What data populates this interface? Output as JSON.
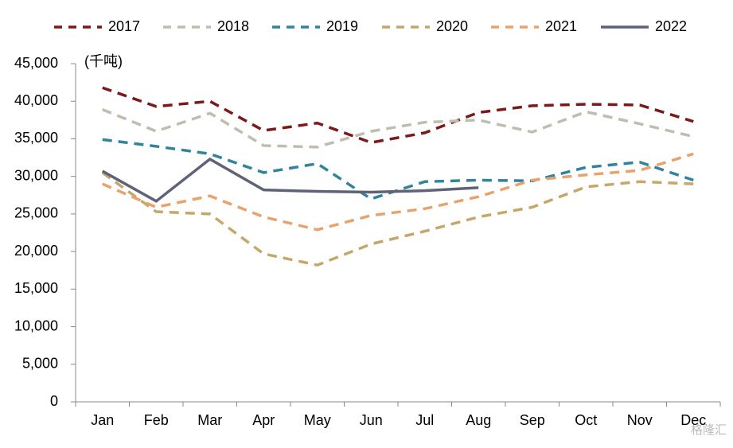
{
  "chart_data": {
    "type": "line",
    "annotation": "(千吨)",
    "watermark": "格隆汇",
    "categories": [
      "Jan",
      "Feb",
      "Mar",
      "Apr",
      "May",
      "Jun",
      "Jul",
      "Aug",
      "Sep",
      "Oct",
      "Nov",
      "Dec"
    ],
    "series": [
      {
        "name": "2017",
        "color": "#7b1a1a",
        "dashed": true,
        "values": [
          41800,
          39300,
          40000,
          36100,
          37100,
          34500,
          35800,
          38500,
          39400,
          39600,
          39500,
          37300
        ]
      },
      {
        "name": "2018",
        "color": "#c0bdb0",
        "dashed": true,
        "values": [
          38900,
          36000,
          38400,
          34100,
          33900,
          36000,
          37200,
          37500,
          35900,
          38600,
          37000,
          35300
        ]
      },
      {
        "name": "2019",
        "color": "#31849b",
        "dashed": true,
        "values": [
          34900,
          34000,
          33000,
          30500,
          31700,
          27000,
          29300,
          29500,
          29400,
          31200,
          31900,
          29500
        ]
      },
      {
        "name": "2020",
        "color": "#c4a86b",
        "dashed": true,
        "values": [
          30500,
          25300,
          25000,
          19700,
          18200,
          21000,
          22700,
          24600,
          25900,
          28600,
          29300,
          29000
        ]
      },
      {
        "name": "2021",
        "color": "#e8a26e",
        "dashed": true,
        "values": [
          29000,
          25900,
          27400,
          24600,
          22900,
          24800,
          25700,
          27300,
          29500,
          30200,
          30800,
          33000
        ]
      },
      {
        "name": "2022",
        "color": "#5f6377",
        "dashed": false,
        "values": [
          30700,
          26700,
          32300,
          28200,
          28000,
          27900,
          28100,
          28500,
          null,
          null,
          null,
          null
        ]
      }
    ],
    "ylim": [
      0,
      45000
    ],
    "yticks": [
      0,
      {
        "value": 5000,
        "label": "5,000"
      },
      {
        "value": 10000,
        "label": "10,000"
      },
      {
        "value": 15000,
        "label": "15,000"
      },
      {
        "value": 20000,
        "label": "20,000"
      },
      {
        "value": 25000,
        "label": "25,000"
      },
      {
        "value": 30000,
        "label": "30,000"
      },
      {
        "value": 35000,
        "label": "35,000"
      },
      {
        "value": 40000,
        "label": "40,000"
      },
      {
        "value": 45000,
        "label": "45,000"
      }
    ],
    "grid": false,
    "legend": "top"
  }
}
